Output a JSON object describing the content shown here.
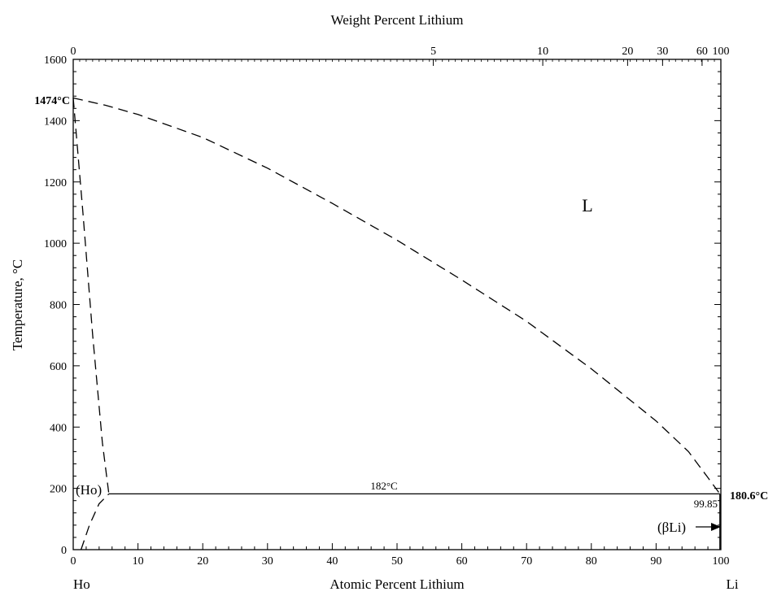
{
  "chart_data": {
    "type": "line",
    "title": "",
    "top_xlabel": "Weight Percent Lithium",
    "xlabel": "Atomic Percent Lithium",
    "ylabel": "Temperature, °C",
    "xlim": [
      0,
      100
    ],
    "ylim": [
      0,
      1600
    ],
    "x_ticks": [
      0,
      10,
      20,
      30,
      40,
      50,
      60,
      70,
      80,
      90,
      100
    ],
    "y_ticks": [
      0,
      200,
      400,
      600,
      800,
      1000,
      1200,
      1400,
      1600
    ],
    "top_ticks": [
      {
        "label": "0",
        "at_pct": 0
      },
      {
        "label": "5",
        "at_pct": 55.6
      },
      {
        "label": "10",
        "at_pct": 72.5
      },
      {
        "label": "20",
        "at_pct": 85.6
      },
      {
        "label": "30",
        "at_pct": 91.0
      },
      {
        "label": "60",
        "at_pct": 97.1
      },
      {
        "label": "100",
        "at_pct": 100
      }
    ],
    "left_element": "Ho",
    "right_element": "Li",
    "series": [
      {
        "style": "dashed",
        "x": [
          0,
          5,
          10,
          20,
          30,
          40,
          50,
          60,
          70,
          80,
          90,
          95,
          98,
          99.85
        ],
        "y": [
          1474,
          1450,
          1420,
          1345,
          1245,
          1130,
          1010,
          880,
          745,
          590,
          420,
          320,
          235,
          182
        ]
      },
      {
        "style": "dashed",
        "x": [
          0,
          1.5,
          3,
          4.5,
          5.5
        ],
        "y": [
          1474,
          1100,
          700,
          350,
          182
        ]
      },
      {
        "style": "dashed",
        "x": [
          1.2,
          2.5,
          4,
          5.5
        ],
        "y": [
          0,
          80,
          150,
          182
        ]
      },
      {
        "style": "solid",
        "x": [
          5.5,
          99.85
        ],
        "y": [
          182,
          182
        ]
      },
      {
        "style": "solid",
        "x": [
          99.85,
          99.85
        ],
        "y": [
          0,
          182
        ]
      }
    ],
    "annotations": {
      "melt_ho": "1474°C",
      "melt_li": "180.6°C",
      "eutectic": "182°C",
      "solubility": "99.85",
      "liquid": "L",
      "ho_phase": "(Ho)",
      "li_phase": "(βLi)"
    }
  }
}
